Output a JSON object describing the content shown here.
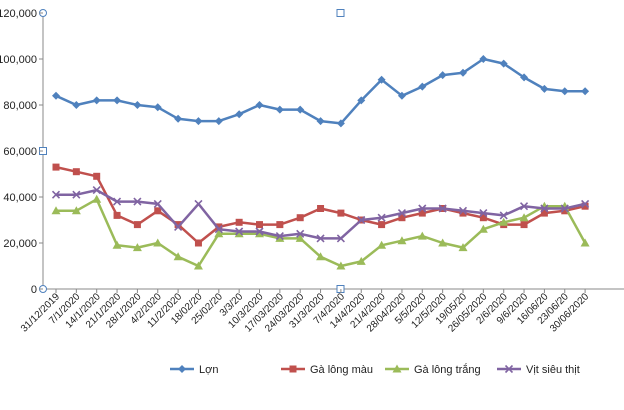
{
  "chart_data": {
    "type": "line",
    "ylim": [
      0,
      120000
    ],
    "yticks": [
      0,
      20000,
      40000,
      60000,
      80000,
      100000,
      120000
    ],
    "ytick_labels": [
      "0",
      "20,000",
      "40,000",
      "60,000",
      "80,000",
      "100,000",
      "120,000"
    ],
    "grid": false,
    "legend_position": "bottom",
    "categories": [
      "31/12/2019",
      "7/1/2020",
      "14/1/2020",
      "21/1/2020",
      "28/1/2020",
      "4/2/2020",
      "11/2/2020",
      "18/02/20",
      "25/02/20",
      "3/3/20",
      "10/3/2020",
      "17/03/2020",
      "24/03/2020",
      "31/3/2020",
      "7/4/2020",
      "14/4/2020",
      "21/4/2020",
      "28/04/2020",
      "5/5/2020",
      "12/5/2020",
      "19/05/20",
      "26/05/2020",
      "2/6/2020",
      "9/6/2020",
      "16/06/20",
      "23/06/20",
      "30/06/2020"
    ],
    "series": [
      {
        "name": "Lợn",
        "color": "#4f81bd",
        "marker": "diamond",
        "values": [
          84000,
          80000,
          82000,
          82000,
          80000,
          79000,
          74000,
          73000,
          73000,
          76000,
          80000,
          78000,
          78000,
          73000,
          72000,
          82000,
          91000,
          84000,
          88000,
          93000,
          94000,
          100000,
          98000,
          92000,
          87000,
          86000,
          86000
        ]
      },
      {
        "name": "Gà lông màu",
        "color": "#c0504d",
        "marker": "square",
        "values": [
          53000,
          51000,
          49000,
          32000,
          28000,
          34000,
          28000,
          20000,
          27000,
          29000,
          28000,
          28000,
          31000,
          35000,
          33000,
          30000,
          28000,
          31000,
          33000,
          35000,
          33000,
          31000,
          28000,
          28000,
          33000,
          34000,
          36000
        ]
      },
      {
        "name": "Gà lông trắng",
        "color": "#9bbb59",
        "marker": "triangle",
        "values": [
          34000,
          34000,
          39000,
          19000,
          18000,
          20000,
          14000,
          10000,
          24000,
          24000,
          24000,
          22000,
          22000,
          14000,
          10000,
          12000,
          19000,
          21000,
          23000,
          20000,
          18000,
          26000,
          29000,
          31000,
          36000,
          36000,
          20000
        ]
      },
      {
        "name": "Vịt siêu thịt",
        "color": "#8064a2",
        "marker": "x",
        "values": [
          41000,
          41000,
          43000,
          38000,
          38000,
          37000,
          27000,
          37000,
          26000,
          25000,
          25000,
          23000,
          24000,
          22000,
          22000,
          30000,
          31000,
          33000,
          35000,
          35000,
          34000,
          33000,
          32000,
          36000,
          35000,
          35000,
          37000
        ]
      }
    ]
  }
}
